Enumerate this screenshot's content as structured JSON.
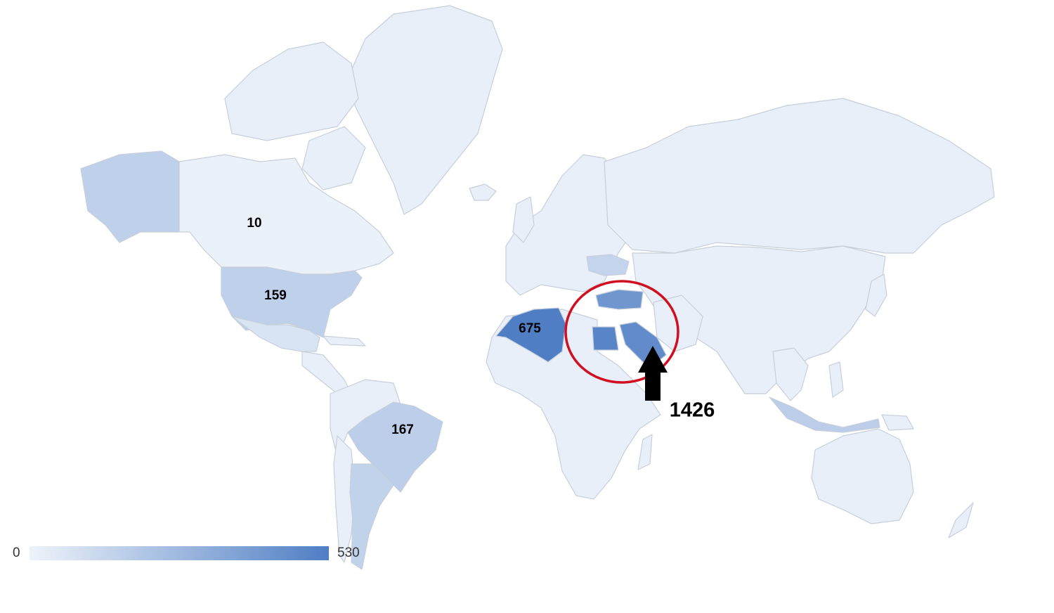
{
  "colors": {
    "base_land": "#e9eff8",
    "scale_min": "#eef3fa",
    "scale_max": "#4f7ec4",
    "highlight_circle": "#d01020",
    "arrow": "#000000"
  },
  "legend": {
    "min_label": "0",
    "max_label": "530",
    "min_value": 0,
    "max_value": 530
  },
  "regions": [
    {
      "id": "canada",
      "label": "10",
      "value": 10
    },
    {
      "id": "usa",
      "label": "159",
      "value": 159
    },
    {
      "id": "brazil",
      "label": "167",
      "value": 167
    },
    {
      "id": "algeria",
      "label": "675",
      "value": 530
    },
    {
      "id": "alaska",
      "label": "",
      "value": 160
    },
    {
      "id": "argentina",
      "label": "",
      "value": 150
    },
    {
      "id": "mexico",
      "label": "",
      "value": 70
    },
    {
      "id": "turkey",
      "label": "",
      "value": 420
    },
    {
      "id": "egypt",
      "label": "",
      "value": 500
    },
    {
      "id": "saudi-arabia",
      "label": "",
      "value": 470
    },
    {
      "id": "ukraine",
      "label": "",
      "value": 140
    },
    {
      "id": "indonesia",
      "label": "",
      "value": 170
    }
  ],
  "callout": {
    "label": "1426",
    "description_icon": "arrow-up-icon"
  }
}
